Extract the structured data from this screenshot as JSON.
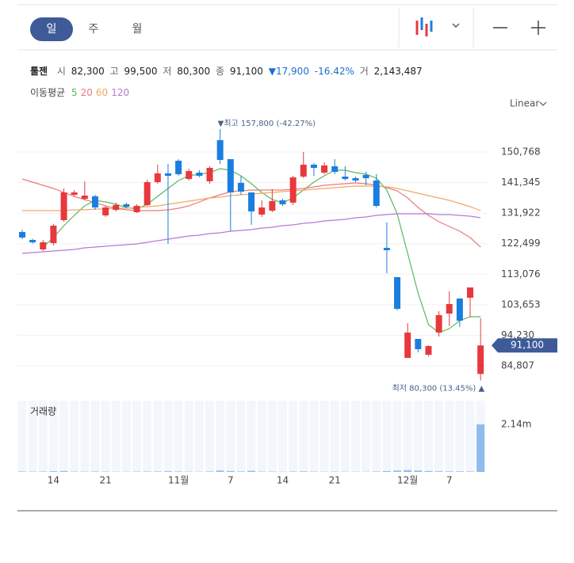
{
  "toolbar": {
    "tabs": [
      "일",
      "주",
      "월"
    ],
    "scale": "Linear"
  },
  "header": {
    "name": "툴젠",
    "fields": [
      {
        "label": "시",
        "value": "82,300"
      },
      {
        "label": "고",
        "value": "99,500"
      },
      {
        "label": "저",
        "value": "80,300"
      },
      {
        "label": "종",
        "value": "91,100"
      }
    ],
    "change": "▼17,900",
    "change_rate": "-16.42%",
    "volume_label": "거",
    "volume": "2,143,487",
    "ma_label": "이동평균"
  },
  "chart_data": {
    "type": "candlestick",
    "categories": [
      null,
      null,
      null,
      "14",
      null,
      null,
      null,
      null,
      "21",
      null,
      null,
      null,
      null,
      null,
      null,
      "11월",
      null,
      null,
      null,
      null,
      "7",
      null,
      null,
      null,
      null,
      "14",
      null,
      null,
      null,
      null,
      "21",
      null,
      null,
      null,
      null,
      null,
      null,
      "12월",
      null,
      null,
      null,
      "7",
      null,
      null,
      null
    ],
    "open": [
      126094,
      123650,
      120720,
      122660,
      129760,
      137580,
      136350,
      137100,
      131220,
      132930,
      134650,
      132200,
      134400,
      141490,
      144180,
      148080,
      142460,
      144400,
      141730,
      154430,
      148570,
      141250,
      138310,
      131470,
      132690,
      135870,
      135150,
      143190,
      146870,
      144420,
      146370,
      143190,
      142700,
      143680,
      141980,
      121200,
      112170,
      87250,
      93110,
      88220,
      95070,
      100930,
      105570,
      105810,
      82300
    ],
    "high": [
      126827,
      124000,
      123650,
      128540,
      139540,
      139050,
      141730,
      137580,
      134160,
      135150,
      135150,
      134650,
      142220,
      146870,
      147100,
      148570,
      145630,
      145150,
      146370,
      157800,
      148570,
      143440,
      138310,
      135870,
      139300,
      136350,
      143440,
      150770,
      147350,
      147600,
      148570,
      146370,
      143190,
      144660,
      143930,
      129030,
      112170,
      98000,
      93110,
      91150,
      101660,
      107770,
      105570,
      108990,
      99500
    ],
    "low": [
      123895,
      122500,
      120230,
      121940,
      129270,
      137100,
      135870,
      132930,
      130730,
      132440,
      133420,
      131960,
      134160,
      141000,
      122430,
      143440,
      141980,
      142950,
      141000,
      147100,
      126340,
      137580,
      128290,
      130730,
      132200,
      134160,
      134400,
      142700,
      143440,
      143930,
      143930,
      141980,
      141490,
      140520,
      133670,
      113390,
      101920,
      87250,
      88960,
      87740,
      93840,
      97030,
      96780,
      99960,
      80300
    ],
    "close": [
      124384,
      122900,
      122920,
      128050,
      138310,
      138310,
      137330,
      133670,
      133670,
      134400,
      133910,
      134160,
      141490,
      144180,
      143440,
      143930,
      144900,
      143440,
      145880,
      148330,
      138310,
      138550,
      132440,
      133670,
      135630,
      134650,
      142950,
      146870,
      145880,
      146630,
      144660,
      142460,
      141980,
      142700,
      134160,
      120480,
      102400,
      95070,
      89940,
      90910,
      100450,
      103860,
      98730,
      108990,
      91100
    ],
    "up_color": "#e8383d",
    "down_color": "#1a7ee0",
    "series": [
      {
        "name": "5",
        "color": "#5cb85c",
        "values": [
          null,
          null,
          121450,
          124380,
          128050,
          131220,
          134160,
          135870,
          135380,
          134640,
          133670,
          133180,
          134640,
          137090,
          139530,
          141970,
          143440,
          143930,
          144420,
          145640,
          145150,
          143440,
          140990,
          138310,
          136110,
          135130,
          136600,
          139040,
          141480,
          143440,
          145150,
          145150,
          144420,
          143930,
          142710,
          139040,
          131710,
          119500,
          107280,
          97510,
          95070,
          96290,
          98730,
          99950,
          99950
        ]
      },
      {
        "name": "20",
        "color": "#ec7a7a",
        "values": [
          142462,
          141485,
          140507,
          139530,
          138309,
          137088,
          136110,
          135133,
          134156,
          133423,
          132934,
          132690,
          132690,
          132690,
          132934,
          133423,
          134156,
          135377,
          136599,
          137576,
          138553,
          138798,
          139042,
          139042,
          139042,
          139042,
          139286,
          139530,
          140019,
          140507,
          140752,
          140996,
          141240,
          140996,
          140507,
          139775,
          138798,
          136599,
          133667,
          131224,
          129270,
          127804,
          126338,
          124384,
          121452
        ]
      },
      {
        "name": "60",
        "color": "#f0a868",
        "values": [
          132690,
          132690,
          132690,
          132690,
          132690,
          132934,
          132934,
          133178,
          133178,
          133423,
          133423,
          133667,
          133911,
          134156,
          134644,
          135133,
          135621,
          136110,
          136599,
          136843,
          137332,
          137576,
          137820,
          138065,
          138309,
          138553,
          138798,
          139042,
          139286,
          139530,
          139775,
          140019,
          140263,
          140263,
          140263,
          140019,
          139530,
          138798,
          138065,
          137332,
          136599,
          135866,
          134889,
          133911,
          132690
        ]
      },
      {
        "name": "120",
        "color": "#b57ad6",
        "values": [
          119498,
          119742,
          119986,
          120231,
          120475,
          120719,
          121208,
          121452,
          121696,
          121941,
          122185,
          122429,
          122918,
          123406,
          123895,
          124384,
          124872,
          125117,
          125605,
          125849,
          126338,
          126582,
          126827,
          127315,
          127560,
          128048,
          128292,
          128781,
          129025,
          129514,
          129758,
          130002,
          130491,
          130735,
          131224,
          131468,
          131712,
          131712,
          131712,
          131712,
          131468,
          131468,
          131224,
          130979,
          130491
        ]
      }
    ],
    "ylim": [
      75521,
      162250
    ],
    "yticks": [
      {
        "value": 150768,
        "label": "150,768"
      },
      {
        "value": 141345,
        "label": "141,345"
      },
      {
        "value": 131922,
        "label": "131,922"
      },
      {
        "value": 122499,
        "label": "122,499"
      },
      {
        "value": 113076,
        "label": "113,076"
      },
      {
        "value": 103653,
        "label": "103,653"
      },
      {
        "value": 94230,
        "label": "94,230"
      },
      {
        "value": 84807,
        "label": "84,807"
      }
    ],
    "grid": true,
    "high_annotation": "▼최고 157,800 (-42.27%)",
    "low_annotation": "최저 80,300 (13.45%) ▲",
    "last_price_label": "91,100",
    "volume": {
      "label": "거래량",
      "color": "#8fbcee",
      "last_label": "2.14m",
      "ylim": [
        0,
        3215000
      ],
      "values": [
        20000,
        15000,
        20000,
        30000,
        40000,
        15000,
        15000,
        20000,
        15000,
        10000,
        10000,
        15000,
        20000,
        20000,
        30000,
        20000,
        15000,
        10000,
        20000,
        60000,
        40000,
        20000,
        50000,
        15000,
        15000,
        10000,
        20000,
        25000,
        15000,
        10000,
        15000,
        10000,
        10000,
        10000,
        20000,
        40000,
        60000,
        80000,
        60000,
        40000,
        30000,
        25000,
        25000,
        20000,
        2143487
      ]
    }
  }
}
